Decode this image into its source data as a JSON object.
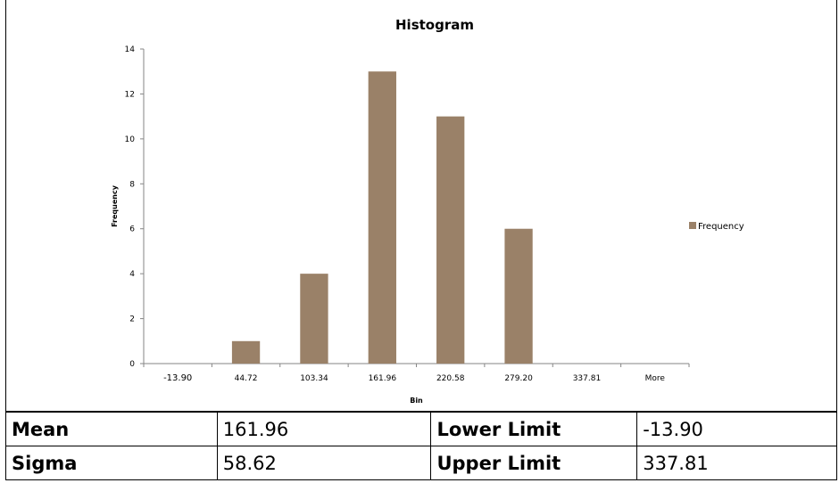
{
  "chart_data": {
    "type": "bar",
    "title": "Histogram",
    "xlabel": "Bin",
    "ylabel": "Frequency",
    "categories": [
      "-13.90",
      "44.72",
      "103.34",
      "161.96",
      "220.58",
      "279.20",
      "337.81",
      "More"
    ],
    "series": [
      {
        "name": "Frequency",
        "values": [
          0,
          1,
          4,
          13,
          11,
          6,
          0,
          0
        ],
        "color": "#9a8168"
      }
    ],
    "ylim": [
      0,
      14
    ],
    "yticks": [
      0,
      2,
      4,
      6,
      8,
      10,
      12,
      14
    ],
    "grid": false,
    "legend": "right"
  },
  "stats": {
    "mean_label": "Mean",
    "mean_value": "161.96",
    "sigma_label": "Sigma",
    "sigma_value": "58.62",
    "lower_label": "Lower Limit",
    "lower_value": "-13.90",
    "upper_label": "Upper Limit",
    "upper_value": "337.81"
  }
}
